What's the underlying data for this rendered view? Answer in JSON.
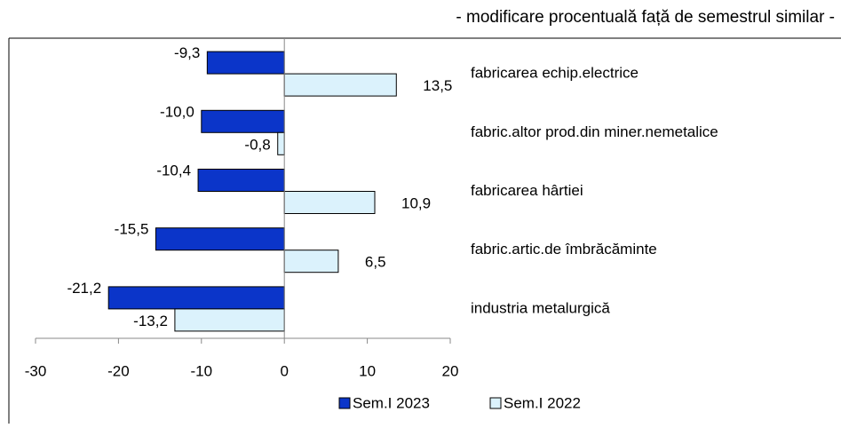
{
  "chart_data": {
    "type": "bar",
    "orientation": "horizontal",
    "subtitle": "- modificare procentuală față de semestrul similar -",
    "categories": [
      "fabricarea echip.electrice",
      "fabric.altor prod.din miner.nemetalice",
      "fabricarea hârtiei",
      "fabric.artic.de îmbrăcăminte",
      "industria metalurgică"
    ],
    "series": [
      {
        "name": "Sem.I 2023",
        "color": "#0b35c9",
        "values": [
          -9.3,
          -10.0,
          -10.4,
          -15.5,
          -21.2
        ],
        "value_labels": [
          "-9,3",
          "-10,0",
          "-10,4",
          "-15,5",
          "-21,2"
        ]
      },
      {
        "name": "Sem.I 2022",
        "color": "#dbf2fc",
        "values": [
          13.5,
          -0.8,
          10.9,
          6.5,
          -13.2
        ],
        "value_labels": [
          "13,5",
          "-0,8",
          "10,9",
          "6,5",
          "-13,2"
        ]
      }
    ],
    "xlim": [
      -30,
      20
    ],
    "xticks": [
      -30,
      -20,
      -10,
      0,
      10,
      20
    ],
    "legend": "bottom"
  }
}
